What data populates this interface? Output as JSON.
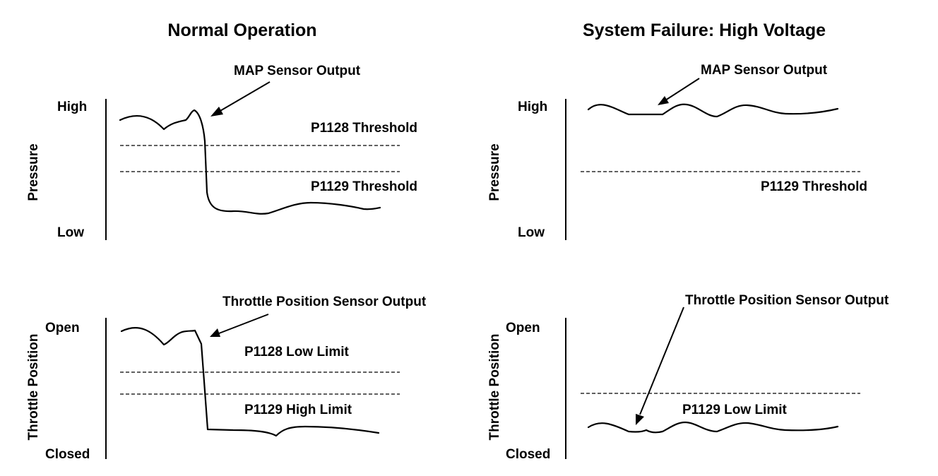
{
  "left": {
    "title": "Normal Operation",
    "top": {
      "y_axis_label": "Pressure",
      "high_label": "High",
      "low_label": "Low",
      "output_label": "MAP Sensor Output",
      "line1_label": "P1128 Threshold",
      "line2_label": "P1129 Threshold"
    },
    "bottom": {
      "y_axis_label": "Throttle Position",
      "high_label": "Open",
      "low_label": "Closed",
      "output_label": "Throttle Position Sensor Output",
      "line1_label": "P1128 Low Limit",
      "line2_label": "P1129 High Limit"
    }
  },
  "right": {
    "title": "System Failure: High Voltage",
    "top": {
      "y_axis_label": "Pressure",
      "high_label": "High",
      "low_label": "Low",
      "output_label": "MAP Sensor Output",
      "line_label": "P1129 Threshold"
    },
    "bottom": {
      "y_axis_label": "Throttle Position",
      "high_label": "Open",
      "low_label": "Closed",
      "output_label": "Throttle Position Sensor Output",
      "line_label": "P1129 Low Limit"
    }
  }
}
